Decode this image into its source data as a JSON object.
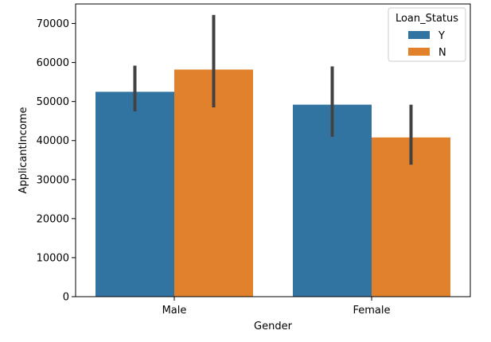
{
  "chart_data": {
    "type": "bar",
    "title": "",
    "xlabel": "Gender",
    "ylabel": "ApplicantIncome",
    "categories": [
      "Male",
      "Female"
    ],
    "ylim": [
      0,
      75000
    ],
    "yticks": [
      0,
      10000,
      20000,
      30000,
      40000,
      50000,
      60000,
      70000
    ],
    "grid": false,
    "legend": {
      "title": "Loan_Status",
      "placement": "top-right"
    },
    "series": [
      {
        "name": "Y",
        "color": "#3274a1",
        "values": [
          52500,
          49200
        ],
        "error_low": [
          47500,
          41000
        ],
        "error_high": [
          59200,
          59000
        ]
      },
      {
        "name": "N",
        "color": "#e1812c",
        "values": [
          58200,
          40800
        ],
        "error_low": [
          48500,
          33800
        ],
        "error_high": [
          72200,
          49200
        ]
      }
    ],
    "errorbar_color": "#424242"
  }
}
